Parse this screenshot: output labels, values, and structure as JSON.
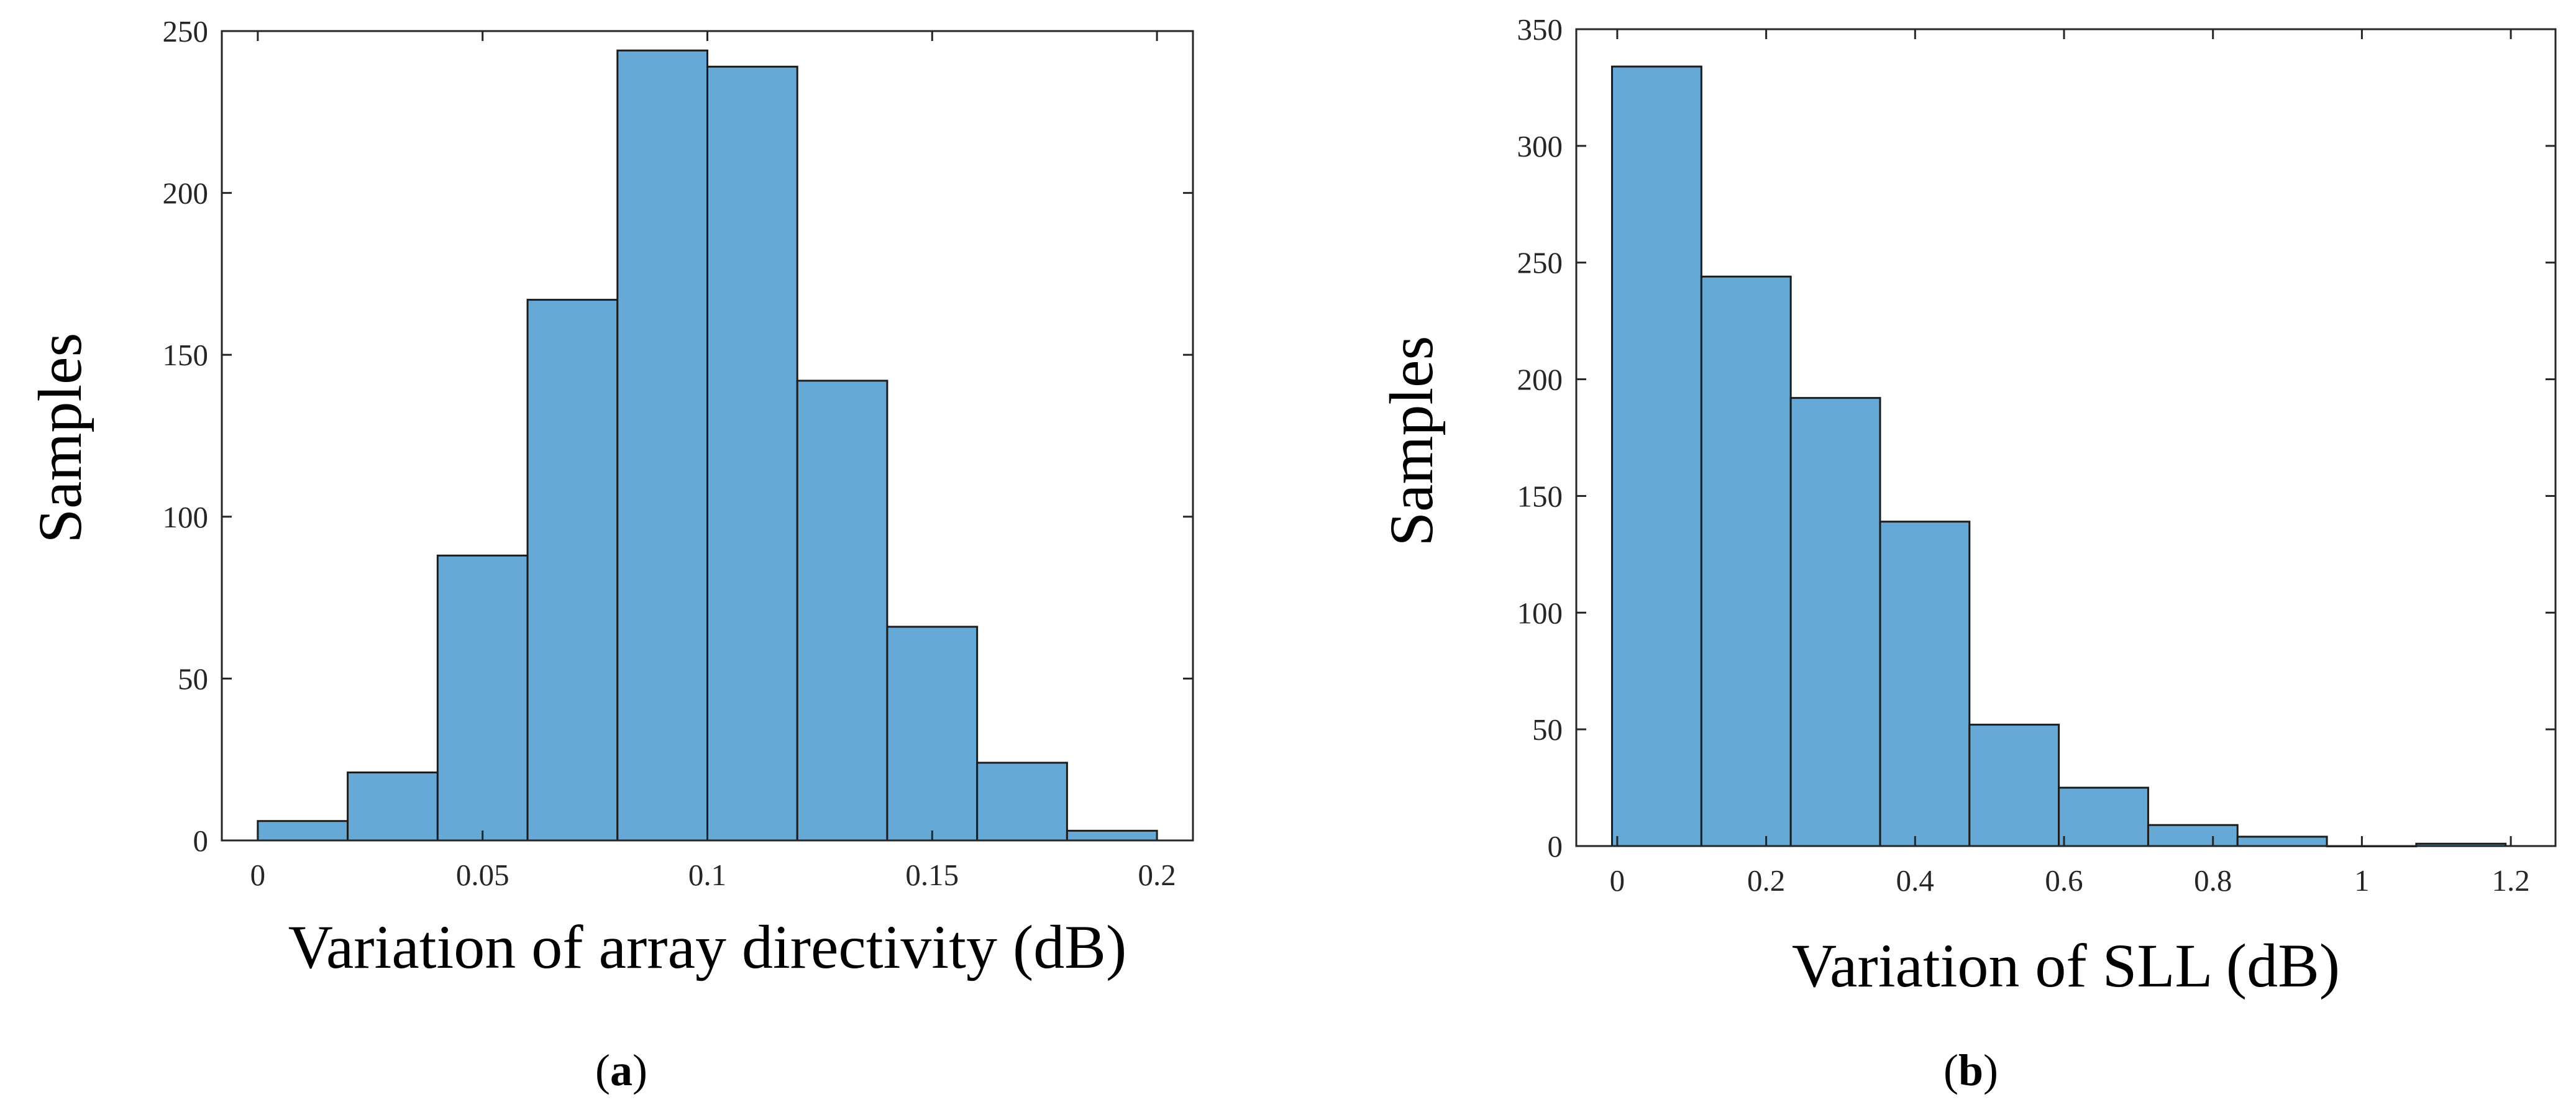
{
  "chart_data": [
    {
      "type": "bar",
      "subtype": "histogram",
      "caption_letter": "a",
      "title": "",
      "xlabel": "Variation of array directivity (dB)",
      "ylabel": "Samples",
      "bin_edges": [
        0,
        0.02,
        0.04,
        0.06,
        0.08,
        0.1,
        0.12,
        0.14,
        0.16,
        0.18,
        0.2
      ],
      "values": [
        6,
        21,
        88,
        167,
        244,
        239,
        142,
        66,
        24,
        3
      ],
      "xlim": [
        -0.008,
        0.208
      ],
      "ylim": [
        0,
        250
      ],
      "xticks": [
        0,
        0.05,
        0.1,
        0.15,
        0.2
      ],
      "xtick_labels": [
        "0",
        "0.05",
        "0.1",
        "0.15",
        "0.2"
      ],
      "yticks": [
        0,
        50,
        100,
        150,
        200,
        250
      ],
      "ytick_labels": [
        "0",
        "50",
        "100",
        "150",
        "200",
        "250"
      ],
      "bar_color": "#66a9d7",
      "grid": false
    },
    {
      "type": "bar",
      "subtype": "histogram",
      "caption_letter": "b",
      "title": "",
      "xlabel": "Variation of SLL (dB)",
      "ylabel": "Samples",
      "bin_edges": [
        -0.007,
        0.113,
        0.233,
        0.353,
        0.473,
        0.593,
        0.713,
        0.833,
        0.953,
        1.073,
        1.193
      ],
      "values": [
        334,
        244,
        192,
        139,
        52,
        25,
        9,
        4,
        0,
        1
      ],
      "xlim": [
        -0.055,
        1.26
      ],
      "ylim": [
        0,
        350
      ],
      "xticks": [
        0,
        0.2,
        0.4,
        0.6,
        0.8,
        1,
        1.2
      ],
      "xtick_labels": [
        "0",
        "0.2",
        "0.4",
        "0.6",
        "0.8",
        "1",
        "1.2"
      ],
      "yticks": [
        0,
        50,
        100,
        150,
        200,
        250,
        300,
        350
      ],
      "ytick_labels": [
        "0",
        "50",
        "100",
        "150",
        "200",
        "250",
        "300",
        "350"
      ],
      "bar_color": "#66a9d7",
      "grid": false
    }
  ],
  "captions": [
    {
      "open": "(",
      "letter": "a",
      "close": ")"
    },
    {
      "open": "(",
      "letter": "b",
      "close": ")"
    }
  ]
}
